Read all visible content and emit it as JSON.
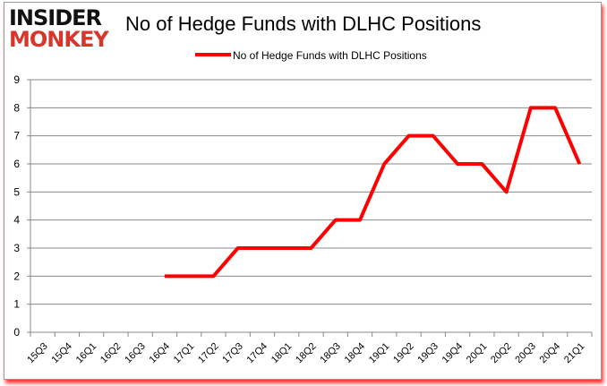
{
  "logo": {
    "line1": "INSIDER",
    "line2": "MONKEY"
  },
  "chart_data": {
    "type": "line",
    "title": "No of Hedge Funds with DLHC Positions",
    "legend": {
      "placement": "top",
      "entries": [
        "No of Hedge Funds with DLHC Positions"
      ]
    },
    "categories": [
      "15Q3",
      "15Q4",
      "16Q1",
      "16Q2",
      "16Q3",
      "16Q4",
      "17Q1",
      "17Q2",
      "17Q3",
      "17Q4",
      "18Q1",
      "18Q2",
      "18Q3",
      "18Q4",
      "19Q1",
      "19Q2",
      "19Q3",
      "19Q4",
      "20Q1",
      "20Q2",
      "20Q3",
      "20Q4",
      "21Q1"
    ],
    "series": [
      {
        "name": "No of Hedge Funds with DLHC Positions",
        "color": "#ff0000",
        "values": [
          null,
          null,
          null,
          null,
          null,
          2,
          2,
          2,
          3,
          3,
          3,
          3,
          4,
          4,
          6,
          7,
          7,
          6,
          6,
          5,
          8,
          8,
          6
        ]
      }
    ],
    "ylim": [
      0,
      9
    ],
    "yticks": [
      0,
      1,
      2,
      3,
      4,
      5,
      6,
      7,
      8,
      9
    ],
    "grid": true,
    "xlabel": "",
    "ylabel": ""
  }
}
